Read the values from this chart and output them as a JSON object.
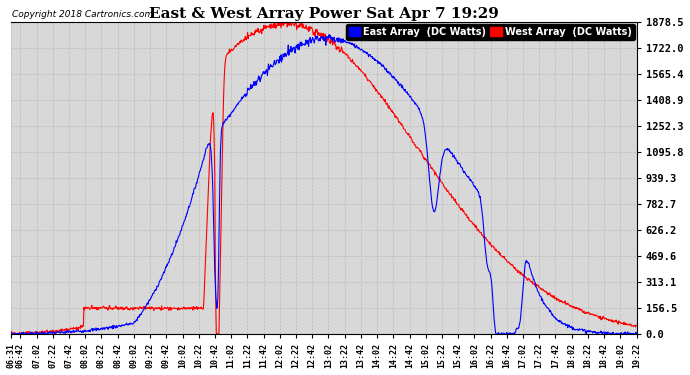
{
  "title": "East & West Array Power Sat Apr 7 19:29",
  "copyright": "Copyright 2018 Cartronics.com",
  "legend_east": "East Array  (DC Watts)",
  "legend_west": "West Array  (DC Watts)",
  "east_color": "#0000ff",
  "west_color": "#ff0000",
  "background_color": "#ffffff",
  "plot_bg_color": "#d8d8d8",
  "grid_color": "#bbbbbb",
  "ylim": [
    0,
    1878.5
  ],
  "yticks": [
    0.0,
    156.5,
    313.1,
    469.6,
    626.2,
    782.7,
    939.3,
    1095.8,
    1252.3,
    1408.9,
    1565.4,
    1722.0,
    1878.5
  ],
  "x_labels": [
    "06:31",
    "06:42",
    "07:02",
    "07:22",
    "07:42",
    "08:02",
    "08:22",
    "08:42",
    "09:02",
    "09:22",
    "09:42",
    "10:02",
    "10:22",
    "10:42",
    "11:02",
    "11:22",
    "11:42",
    "12:02",
    "12:22",
    "12:42",
    "13:02",
    "13:22",
    "13:42",
    "14:02",
    "14:22",
    "14:42",
    "15:02",
    "15:22",
    "15:42",
    "16:02",
    "16:22",
    "16:42",
    "17:02",
    "17:22",
    "17:42",
    "18:02",
    "18:22",
    "18:42",
    "19:02",
    "19:22"
  ]
}
